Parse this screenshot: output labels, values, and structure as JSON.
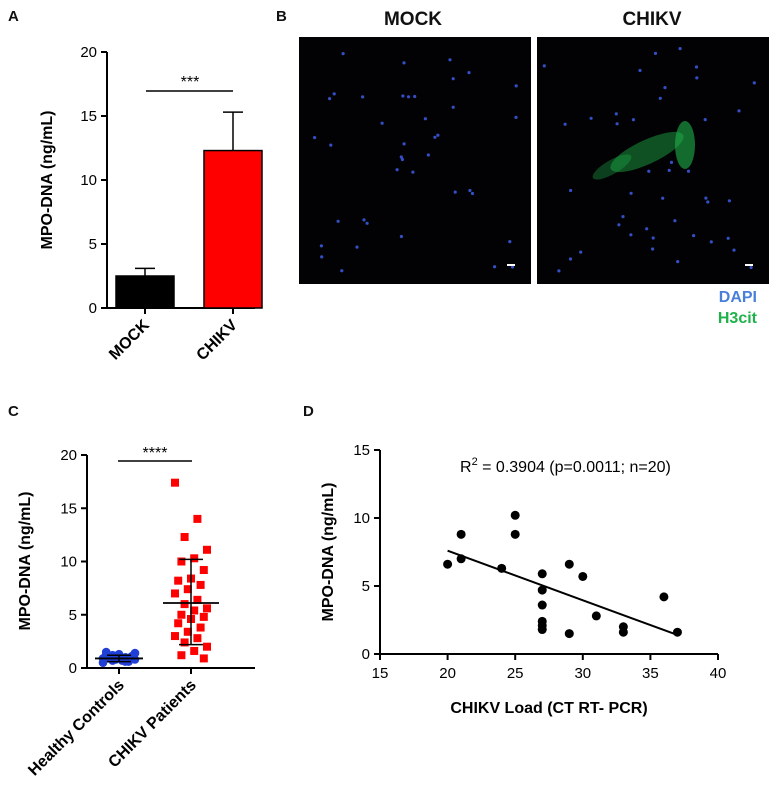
{
  "panels": {
    "A": "A",
    "B": "B",
    "C": "C",
    "D": "D"
  },
  "colors": {
    "mock_bar": "#000000",
    "chikv_bar": "#ff0000",
    "control_points": "#1f3fd6",
    "patient_points": "#ff0000",
    "dapi": "#4a7fd9",
    "h3cit": "#1fb24a"
  },
  "microscopy": {
    "mock_title": "MOCK",
    "chikv_title": "CHIKV",
    "legend_dapi": "DAPI",
    "legend_h3cit": "H3cit"
  },
  "chart_data": [
    {
      "panel": "A",
      "type": "bar",
      "categories": [
        "MOCK",
        "CHIKV"
      ],
      "values": [
        2.5,
        12.3
      ],
      "error_upper": [
        3.1,
        15.3
      ],
      "ylabel": "MPO-DNA  (ng/mL)",
      "ylim": [
        0,
        20
      ],
      "yticks": [
        "0",
        "5",
        "10",
        "15",
        "20"
      ],
      "significance": "***"
    },
    {
      "panel": "C",
      "type": "scatter",
      "categories": [
        "Healthy Controls",
        "CHIKV Patients"
      ],
      "ylabel": "MPO-DNA  (ng/mL)",
      "ylim": [
        0,
        20
      ],
      "yticks": [
        "0",
        "5",
        "10",
        "15",
        "20"
      ],
      "significance": "****",
      "series": [
        {
          "values": [
            0.5,
            0.6,
            0.7,
            0.8,
            0.9,
            1.0,
            1.1,
            1.2,
            1.3,
            0.6,
            0.8,
            0.9,
            1.0,
            1.2,
            1.4,
            0.7,
            0.9,
            1.1,
            1.3,
            1.5
          ],
          "mean": 0.9,
          "sd_low": 0.6,
          "sd_high": 1.2
        },
        {
          "values": [
            17.4,
            14.0,
            12.3,
            11.1,
            10.3,
            10.0,
            9.2,
            8.4,
            8.2,
            7.8,
            7.4,
            7.0,
            6.4,
            6.0,
            5.6,
            5.4,
            5.0,
            4.8,
            4.6,
            4.2,
            3.8,
            3.4,
            3.0,
            2.8,
            2.4,
            2.0,
            1.6,
            1.2,
            0.9
          ],
          "mean": 6.1,
          "sd_low": 2.2,
          "sd_high": 10.2
        }
      ]
    },
    {
      "panel": "D",
      "type": "scatter",
      "xlabel": "CHIKV Load (CT RT- PCR)",
      "ylabel": "MPO-DNA  (ng/mL)",
      "xlim": [
        15,
        40
      ],
      "ylim": [
        0,
        15
      ],
      "xticks": [
        "15",
        "20",
        "25",
        "30",
        "35",
        "40"
      ],
      "yticks": [
        "0",
        "5",
        "10",
        "15"
      ],
      "annotation_prefix": "R",
      "annotation_sup": "2",
      "annotation_rest": " = 0.3904 (p=0.0011; n=20)",
      "x": [
        20,
        21,
        21,
        24,
        25,
        25,
        27,
        27,
        27,
        27,
        27,
        27,
        29,
        29,
        30,
        31,
        33,
        33,
        36,
        37
      ],
      "y": [
        6.6,
        8.8,
        7.0,
        6.3,
        10.2,
        8.8,
        5.9,
        4.7,
        3.6,
        2.4,
        2.1,
        1.8,
        6.6,
        1.5,
        5.7,
        2.8,
        2.0,
        1.6,
        4.2,
        1.6
      ],
      "fit": {
        "x": [
          20,
          37
        ],
        "y": [
          7.6,
          1.4
        ]
      }
    }
  ]
}
